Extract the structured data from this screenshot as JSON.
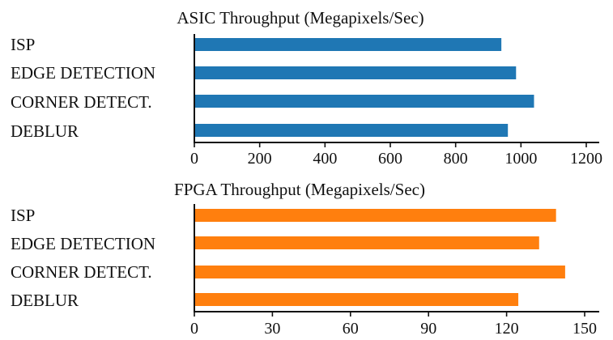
{
  "chart_data": [
    {
      "type": "bar",
      "orientation": "horizontal",
      "title": "ASIC Throughput (Megapixels/Sec)",
      "categories": [
        "ISP",
        "EDGE DETECTION",
        "CORNER DETECT.",
        "DEBLUR"
      ],
      "values": [
        940,
        985,
        1040,
        960
      ],
      "xticks": [
        "0",
        "200",
        "400",
        "600",
        "800",
        "1000",
        "1200"
      ],
      "xlim": [
        0,
        1200
      ],
      "color": "#1f77b4",
      "grid": false,
      "legend": "none"
    },
    {
      "type": "bar",
      "orientation": "horizontal",
      "title": "FPGA Throughput (Megapixels/Sec)",
      "categories": [
        "ISP",
        "EDGE DETECTION",
        "CORNER DETECT.",
        "DEBLUR"
      ],
      "values": [
        139,
        132.5,
        142.5,
        124.5
      ],
      "xticks": [
        "0",
        "30",
        "60",
        "90",
        "120",
        "150"
      ],
      "xlim": [
        0,
        150
      ],
      "color": "#ff7f0e",
      "grid": false,
      "legend": "none"
    }
  ]
}
